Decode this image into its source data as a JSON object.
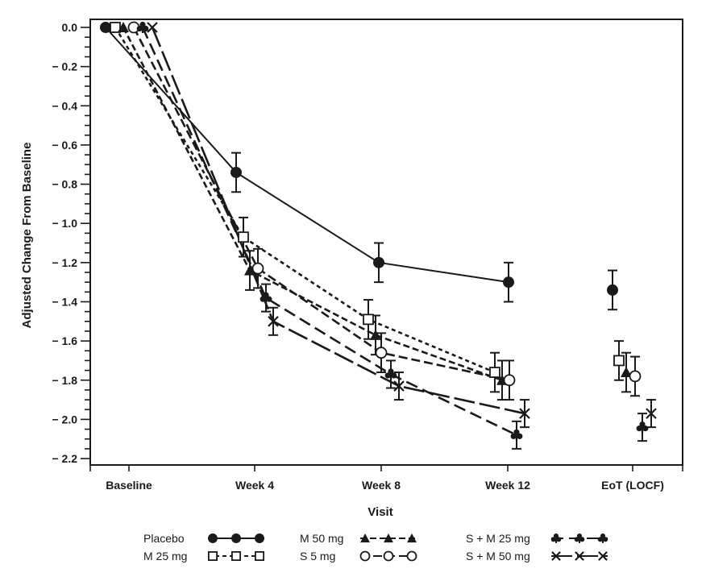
{
  "chart_data": {
    "type": "line",
    "title": "",
    "xlabel": "Visit",
    "ylabel": "Adjusted Change From Baseline",
    "categories": [
      "Baseline",
      "Week 4",
      "Week 8",
      "Week 12",
      "EoT (LOCF)"
    ],
    "ylim": [
      -2.25,
      0.05
    ],
    "yticks": [
      0.0,
      -0.2,
      -0.4,
      -0.6,
      -0.8,
      -1.0,
      -1.2,
      -1.4,
      -1.6,
      -1.8,
      -2.0,
      -2.2
    ],
    "ytick_labels": [
      "0.0",
      "− 0.2",
      "− 0.4",
      "− 0.6",
      "− 0.8",
      "− 1.0",
      "− 1.2",
      "− 1.4",
      "− 1.6",
      "− 1.8",
      "− 2.0",
      "− 2.2"
    ],
    "minor_tick_step": 0.05,
    "grid": false,
    "legend_placement": "bottom",
    "connected_visits": 4,
    "series": [
      {
        "name": "Placebo",
        "marker": "filled-circle",
        "line": "solid",
        "values": [
          0.0,
          -0.74,
          -1.2,
          -1.3,
          -1.34
        ],
        "errors": [
          0.0,
          0.1,
          0.1,
          0.1,
          0.1
        ]
      },
      {
        "name": "M 25 mg",
        "marker": "open-square",
        "line": "short-dash",
        "values": [
          0.0,
          -1.07,
          -1.49,
          -1.76,
          -1.7
        ],
        "errors": [
          0.0,
          0.1,
          0.1,
          0.1,
          0.1
        ]
      },
      {
        "name": "M 50 mg",
        "marker": "filled-triangle",
        "line": "dash",
        "values": [
          0.0,
          -1.24,
          -1.57,
          -1.8,
          -1.76
        ],
        "errors": [
          0.0,
          0.1,
          0.1,
          0.1,
          0.1
        ]
      },
      {
        "name": "S 5 mg",
        "marker": "open-circle",
        "line": "medium-dash",
        "values": [
          0.0,
          -1.23,
          -1.66,
          -1.8,
          -1.78
        ],
        "errors": [
          0.0,
          0.1,
          0.1,
          0.1,
          0.1
        ]
      },
      {
        "name": "S + M 25 mg",
        "marker": "club",
        "line": "long-dash",
        "values": [
          0.0,
          -1.38,
          -1.77,
          -2.08,
          -2.04
        ],
        "errors": [
          0.0,
          0.07,
          0.07,
          0.07,
          0.07
        ]
      },
      {
        "name": "S + M 50 mg",
        "marker": "x",
        "line": "very-long-dash",
        "values": [
          0.0,
          -1.5,
          -1.83,
          -1.97,
          -1.97
        ],
        "errors": [
          0.0,
          0.07,
          0.07,
          0.07,
          0.07
        ]
      }
    ]
  }
}
